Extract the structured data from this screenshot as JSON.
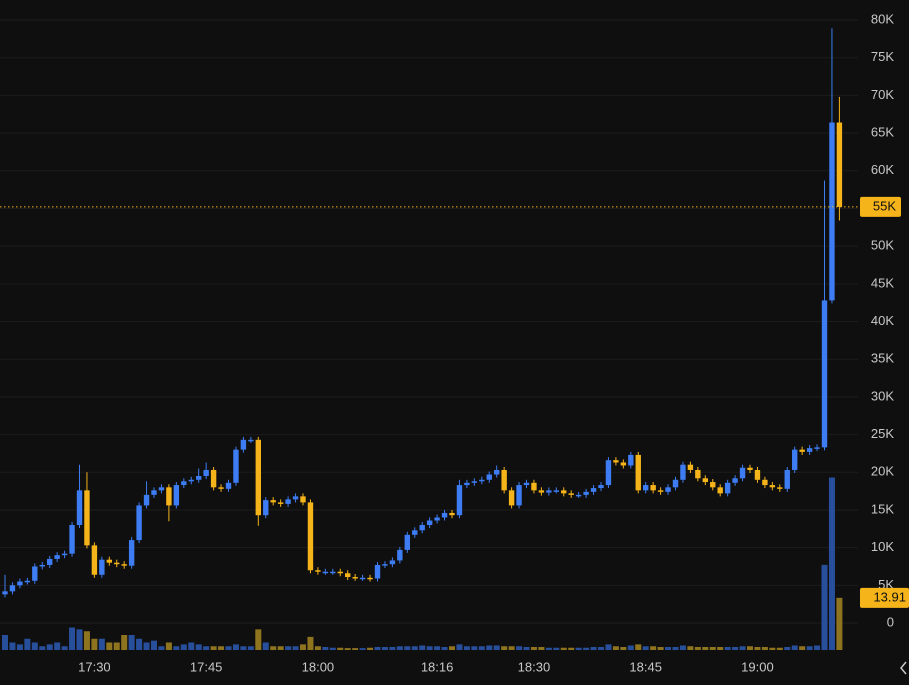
{
  "chart_data": {
    "type": "candlestick",
    "categories": [
      null,
      null,
      null,
      null,
      null,
      null,
      null,
      null,
      null,
      null,
      null,
      null,
      "17:30",
      null,
      null,
      null,
      null,
      null,
      null,
      null,
      null,
      null,
      null,
      null,
      null,
      null,
      null,
      "17:45",
      null,
      null,
      null,
      null,
      null,
      null,
      null,
      null,
      null,
      null,
      null,
      null,
      null,
      null,
      "18:00",
      null,
      null,
      null,
      null,
      null,
      null,
      null,
      null,
      null,
      null,
      null,
      null,
      null,
      null,
      null,
      "18:16",
      null,
      null,
      null,
      null,
      null,
      null,
      null,
      null,
      null,
      null,
      null,
      null,
      "18:30",
      null,
      null,
      null,
      null,
      null,
      null,
      null,
      null,
      null,
      null,
      null,
      null,
      null,
      null,
      "18:45",
      null,
      null,
      null,
      null,
      null,
      null,
      null,
      null,
      null,
      null,
      null,
      null,
      null,
      null,
      "19:00",
      null,
      null,
      null,
      null,
      null,
      null,
      null,
      null,
      null,
      null,
      null
    ],
    "open": [
      3800,
      4200,
      5000,
      5500,
      5600,
      7500,
      7700,
      8500,
      9000,
      9200,
      13000,
      17600,
      10300,
      6400,
      8400,
      8000,
      7800,
      7600,
      11000,
      15600,
      17000,
      17600,
      18000,
      15600,
      18300,
      18800,
      19000,
      19500,
      20300,
      18000,
      17800,
      18600,
      23000,
      24300,
      24300,
      14300,
      16300,
      16000,
      15800,
      16400,
      16800,
      16000,
      7000,
      6800,
      6800,
      6800,
      6600,
      6100,
      6000,
      6000,
      5900,
      7700,
      7800,
      8300,
      9700,
      11700,
      12300,
      13000,
      13600,
      14000,
      14600,
      14300,
      18300,
      18600,
      18800,
      19000,
      19700,
      20300,
      17600,
      15600,
      18300,
      18600,
      17600,
      17300,
      17600,
      17600,
      17200,
      17000,
      17000,
      17400,
      17900,
      18300,
      21600,
      21300,
      20900,
      22300,
      17600,
      18300,
      17600,
      17400,
      18000,
      19000,
      21000,
      20300,
      19200,
      18700,
      18000,
      17200,
      18600,
      19200,
      20600,
      20300,
      19000,
      18300,
      18000,
      17800,
      20300,
      23000,
      22700,
      23200,
      23300,
      42800,
      66400
    ],
    "high": [
      6400,
      5400,
      5900,
      6000,
      7900,
      8100,
      8900,
      9400,
      9600,
      13400,
      21000,
      20000,
      10700,
      8800,
      8800,
      8400,
      8200,
      11400,
      16000,
      18800,
      18000,
      18400,
      18400,
      18700,
      19200,
      19400,
      20500,
      21300,
      20700,
      18400,
      19000,
      23400,
      24700,
      24700,
      24700,
      16700,
      16700,
      16400,
      16800,
      17200,
      17200,
      16400,
      7400,
      7200,
      7200,
      7200,
      7000,
      6500,
      6400,
      6400,
      8100,
      8200,
      8700,
      10100,
      12100,
      12700,
      13400,
      14000,
      14400,
      15000,
      15000,
      19000,
      19000,
      19200,
      19400,
      20100,
      20900,
      20700,
      18000,
      18700,
      19000,
      19000,
      18000,
      18000,
      18000,
      18000,
      17600,
      17400,
      17800,
      18300,
      18700,
      22000,
      22000,
      21700,
      22700,
      22700,
      18700,
      18700,
      18000,
      18400,
      19400,
      21400,
      21400,
      20700,
      19600,
      19100,
      18400,
      19000,
      19600,
      21000,
      21000,
      20700,
      19400,
      18700,
      18400,
      20700,
      23400,
      23400,
      23600,
      23700,
      58700,
      78900,
      69800
    ],
    "low": [
      3400,
      3800,
      4600,
      5100,
      5200,
      7100,
      7300,
      8100,
      8600,
      8800,
      12600,
      9900,
      6000,
      6000,
      7600,
      7400,
      7200,
      7200,
      10600,
      15200,
      16600,
      17200,
      13500,
      15200,
      17900,
      18400,
      18600,
      19100,
      17600,
      17400,
      17400,
      18200,
      22600,
      23900,
      12900,
      13900,
      15600,
      15400,
      15400,
      16000,
      15600,
      6600,
      6400,
      6400,
      6400,
      6200,
      5700,
      5600,
      5600,
      5500,
      5500,
      7300,
      7400,
      7900,
      9300,
      11300,
      11900,
      12600,
      13200,
      13600,
      13900,
      13900,
      17900,
      18200,
      18400,
      18600,
      19300,
      17200,
      15200,
      15200,
      17900,
      17200,
      16900,
      16900,
      17200,
      16800,
      16600,
      16600,
      16600,
      17000,
      17500,
      17900,
      20900,
      20500,
      20500,
      17200,
      17200,
      17200,
      17000,
      17000,
      17600,
      18600,
      19900,
      18800,
      18300,
      17600,
      16800,
      16800,
      18200,
      18800,
      19900,
      18600,
      17900,
      17600,
      17400,
      17400,
      19900,
      22300,
      22300,
      22800,
      22900,
      42400,
      53400
    ],
    "close": [
      4200,
      5000,
      5500,
      5600,
      7500,
      7700,
      8500,
      9000,
      9200,
      13000,
      17600,
      10300,
      6400,
      8400,
      8000,
      7800,
      7600,
      11000,
      15600,
      17000,
      17600,
      18000,
      15600,
      18300,
      18800,
      19000,
      19500,
      20300,
      18000,
      17800,
      18600,
      23000,
      24300,
      24300,
      14300,
      16300,
      16000,
      15800,
      16400,
      16800,
      16000,
      7000,
      6800,
      6800,
      6800,
      6600,
      6100,
      6000,
      6000,
      5900,
      7700,
      7800,
      8300,
      9700,
      11700,
      12300,
      13000,
      13600,
      14000,
      14600,
      14300,
      18300,
      18600,
      18800,
      19000,
      19700,
      20300,
      17600,
      15600,
      18300,
      18600,
      17600,
      17300,
      17600,
      17600,
      17200,
      17000,
      17000,
      17400,
      17900,
      18300,
      21600,
      21300,
      20900,
      22300,
      17600,
      18300,
      17600,
      17400,
      18000,
      19000,
      21000,
      20300,
      19200,
      18700,
      18000,
      17200,
      18600,
      19200,
      20600,
      20300,
      19000,
      18300,
      18000,
      17800,
      20300,
      23000,
      22700,
      23200,
      23300,
      42800,
      66400,
      55200
    ],
    "volume": [
      4,
      2,
      1.5,
      3,
      2,
      1,
      1.5,
      2,
      1,
      6,
      5.5,
      5,
      3,
      3,
      2,
      2,
      4,
      4,
      3,
      2,
      2.5,
      1,
      2,
      1,
      1.5,
      2,
      1.5,
      1,
      1,
      1,
      1,
      1.5,
      1,
      1,
      5.5,
      2,
      1,
      1,
      1,
      1,
      1.5,
      3.5,
      1,
      0.8,
      0.6,
      0.6,
      0.5,
      0.5,
      0.5,
      0.6,
      0.8,
      0.8,
      0.8,
      1,
      1,
      1,
      1.2,
      1,
      1,
      0.8,
      1,
      1.5,
      1,
      1,
      1,
      1.2,
      1.2,
      1,
      1,
      1,
      0.8,
      0.8,
      0.8,
      0.6,
      0.6,
      0.6,
      0.6,
      0.6,
      0.6,
      0.8,
      0.8,
      1.5,
      1,
      0.8,
      1.2,
      1.5,
      1,
      1,
      0.8,
      0.8,
      0.8,
      1.2,
      1,
      0.8,
      0.8,
      0.8,
      0.8,
      0.8,
      0.8,
      1,
      1,
      0.8,
      0.8,
      0.6,
      0.6,
      0.8,
      1.2,
      1,
      1,
      1.2,
      22.7,
      46,
      13.91
    ],
    "ylim": [
      0,
      80000
    ],
    "yticks": [
      {
        "value": 80000,
        "label": "80K"
      },
      {
        "value": 75000,
        "label": "75K"
      },
      {
        "value": 70000,
        "label": "70K"
      },
      {
        "value": 65000,
        "label": "65K"
      },
      {
        "value": 60000,
        "label": "60K"
      },
      {
        "value": 55000,
        "label": "55K"
      },
      {
        "value": 50000,
        "label": "50K"
      },
      {
        "value": 45000,
        "label": "45K"
      },
      {
        "value": 40000,
        "label": "40K"
      },
      {
        "value": 35000,
        "label": "35K"
      },
      {
        "value": 30000,
        "label": "30K"
      },
      {
        "value": 25000,
        "label": "25K"
      },
      {
        "value": 20000,
        "label": "20K"
      },
      {
        "value": 15000,
        "label": "15K"
      },
      {
        "value": 10000,
        "label": "10K"
      },
      {
        "value": 5000,
        "label": "5K"
      },
      0
    ],
    "volume_ylim": [
      0,
      48
    ],
    "last_price_label": "55K",
    "last_volume_label": "13.91",
    "up_color": "#3d7cf2",
    "down_color": "#f4b41a",
    "volume_up_color": "#284f9c",
    "volume_down_color": "#8f7420",
    "grid": true
  }
}
